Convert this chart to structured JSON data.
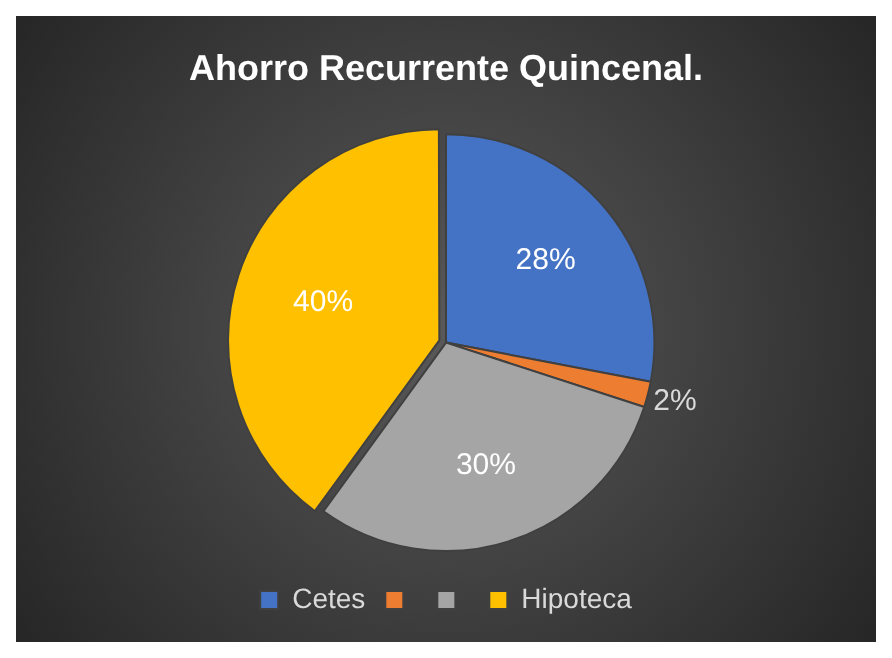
{
  "chart_data": {
    "type": "pie",
    "title": "Ahorro Recurrente Quincenal.",
    "categories": [
      "Cetes",
      null,
      null,
      "Hipoteca"
    ],
    "values": [
      28,
      2,
      30,
      40
    ],
    "colors": [
      "#4472c4",
      "#ed7d31",
      "#a5a5a5",
      "#ffc000"
    ],
    "value_labels": [
      "28%",
      "2%",
      "30%",
      "40%"
    ],
    "legend": "bottom"
  }
}
